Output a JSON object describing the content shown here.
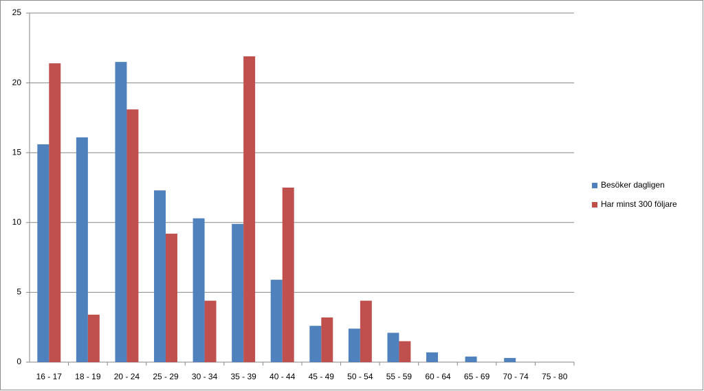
{
  "chart_data": {
    "type": "bar",
    "categories": [
      "16 - 17",
      "18 - 19",
      "20 - 24",
      "25 - 29",
      "30 - 34",
      "35 - 39",
      "40 - 44",
      "45 - 49",
      "50 - 54",
      "55 - 59",
      "60 - 64",
      "65 - 69",
      "70 - 74",
      "75 - 80"
    ],
    "series": [
      {
        "name": "Besöker dagligen",
        "color": "#4f81bd",
        "values": [
          15.6,
          16.1,
          21.5,
          12.3,
          10.3,
          9.9,
          5.9,
          2.6,
          2.4,
          2.1,
          0.7,
          0.4,
          0.3,
          0
        ]
      },
      {
        "name": "Har minst 300 följare",
        "color": "#c0504d",
        "values": [
          21.4,
          3.4,
          18.1,
          9.2,
          4.4,
          21.9,
          12.5,
          3.2,
          4.4,
          1.5,
          0,
          0,
          0,
          0
        ]
      }
    ],
    "ylim": [
      0,
      25
    ],
    "yticks": [
      0,
      5,
      10,
      15,
      20,
      25
    ],
    "grid": true,
    "legend": "right"
  }
}
